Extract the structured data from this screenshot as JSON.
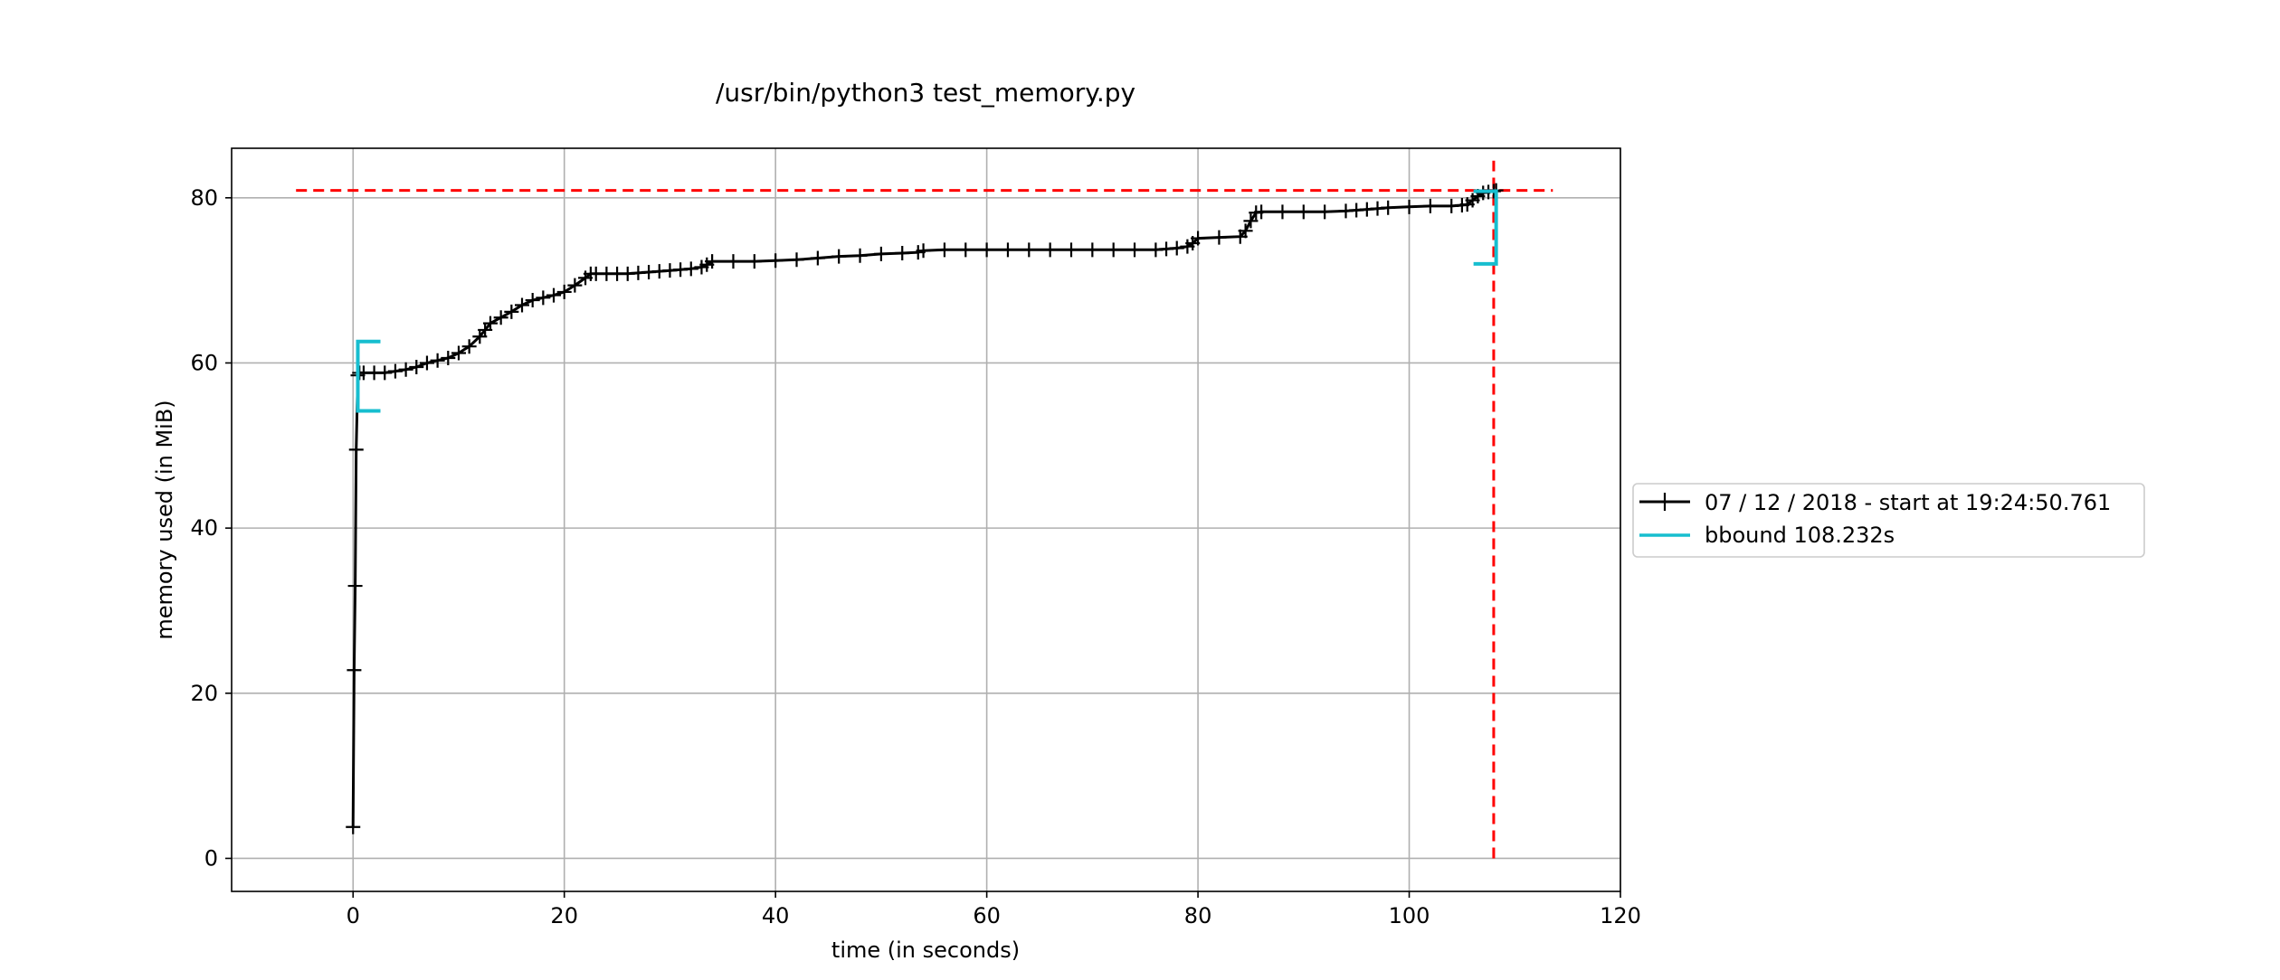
{
  "chart_data": {
    "type": "line",
    "title": "/usr/bin/python3 test_memory.py",
    "xlabel": "time (in seconds)",
    "ylabel": "memory used (in MiB)",
    "xlim": [
      -11.5,
      120
    ],
    "ylim": [
      -4,
      86
    ],
    "x_ticks": [
      0,
      20,
      40,
      60,
      80,
      100,
      120
    ],
    "y_ticks": [
      0,
      20,
      40,
      60,
      80
    ],
    "grid": true,
    "legend_position": "center-right (outside plot)",
    "series": [
      {
        "name": "07 / 12 / 2018 - start at 19:24:50.761",
        "color": "#000000",
        "marker": "plus",
        "x": [
          0.0,
          0.1,
          0.2,
          0.3,
          0.45,
          0.6,
          1.0,
          2.0,
          3.0,
          4.0,
          5.0,
          6.0,
          7.0,
          8.0,
          9.0,
          10.0,
          11.0,
          12.0,
          12.5,
          13.0,
          14.0,
          15.0,
          16.0,
          17.0,
          18.0,
          19.0,
          20.0,
          21.0,
          22.0,
          22.5,
          23.0,
          24.0,
          25.0,
          26.0,
          27.0,
          28.0,
          29.0,
          30.0,
          31.0,
          32.0,
          33.0,
          33.5,
          34.0,
          36.0,
          38.0,
          40.0,
          42.0,
          44.0,
          46.0,
          48.0,
          50.0,
          52.0,
          53.5,
          54.0,
          56.0,
          58.0,
          60.0,
          62.0,
          64.0,
          66.0,
          68.0,
          70.0,
          72.0,
          74.0,
          76.0,
          77.0,
          78.0,
          79.0,
          79.5,
          80.0,
          82.0,
          84.0,
          84.5,
          85.0,
          85.5,
          86.0,
          88.0,
          90.0,
          92.0,
          94.0,
          95.0,
          96.0,
          97.0,
          98.0,
          100.0,
          102.0,
          104.0,
          105.0,
          105.5,
          106.0,
          106.5,
          107.0,
          107.5,
          108.0,
          108.232
        ],
        "y": [
          3.8,
          22.8,
          33.0,
          49.5,
          58.5,
          58.8,
          58.8,
          58.8,
          58.8,
          59.0,
          59.2,
          59.5,
          60.0,
          60.3,
          60.6,
          61.2,
          62.0,
          63.2,
          64.0,
          64.8,
          65.5,
          66.2,
          67.0,
          67.6,
          67.9,
          68.2,
          68.6,
          69.4,
          70.3,
          70.8,
          70.8,
          70.8,
          70.8,
          70.8,
          70.9,
          71.0,
          71.1,
          71.2,
          71.3,
          71.4,
          71.6,
          71.9,
          72.3,
          72.3,
          72.3,
          72.4,
          72.5,
          72.7,
          72.9,
          73.0,
          73.2,
          73.3,
          73.4,
          73.6,
          73.7,
          73.7,
          73.7,
          73.7,
          73.7,
          73.7,
          73.7,
          73.7,
          73.7,
          73.7,
          73.7,
          73.8,
          73.9,
          74.1,
          74.5,
          75.1,
          75.2,
          75.3,
          76.0,
          77.2,
          78.2,
          78.3,
          78.3,
          78.3,
          78.3,
          78.4,
          78.5,
          78.6,
          78.7,
          78.8,
          78.9,
          79.0,
          79.0,
          79.1,
          79.2,
          79.7,
          80.2,
          80.6,
          80.7,
          80.8,
          80.9
        ]
      }
    ],
    "bbound": {
      "name": "bbound 108.232s",
      "color": "#17becf",
      "start": {
        "x": 0.45,
        "y_low": 54.2,
        "y_high": 62.6
      },
      "end": {
        "x": 108.232,
        "y_low": 72.0,
        "y_high": 80.8
      }
    },
    "max_lines": {
      "color": "#ff0000",
      "horizontal": {
        "y": 80.9,
        "x_from": -5.4,
        "x_to": 113.6
      },
      "vertical": {
        "x": 108.0,
        "y_from": 0,
        "y_to": 84.5
      }
    }
  }
}
